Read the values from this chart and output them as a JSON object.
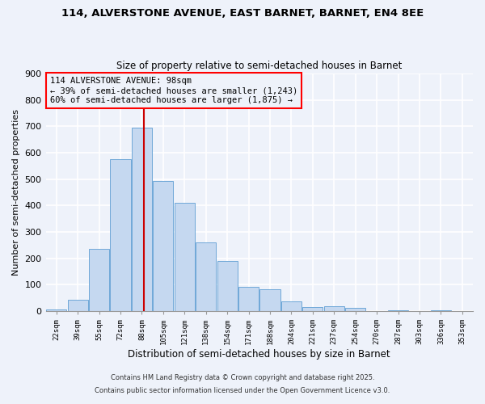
{
  "title": "114, ALVERSTONE AVENUE, EAST BARNET, BARNET, EN4 8EE",
  "subtitle": "Size of property relative to semi-detached houses in Barnet",
  "xlabel": "Distribution of semi-detached houses by size in Barnet",
  "ylabel": "Number of semi-detached properties",
  "bin_labels": [
    "22sqm",
    "39sqm",
    "55sqm",
    "72sqm",
    "88sqm",
    "105sqm",
    "121sqm",
    "138sqm",
    "154sqm",
    "171sqm",
    "188sqm",
    "204sqm",
    "221sqm",
    "237sqm",
    "254sqm",
    "270sqm",
    "287sqm",
    "303sqm",
    "336sqm",
    "353sqm"
  ],
  "bar_values": [
    8,
    42,
    237,
    575,
    695,
    492,
    410,
    262,
    190,
    92,
    82,
    37,
    15,
    18,
    13,
    0,
    5,
    0,
    5,
    0
  ],
  "bar_color": "#c5d8f0",
  "bar_edge_color": "#6fa8d8",
  "property_label": "114 ALVERSTONE AVENUE: 98sqm",
  "pct_smaller": "39%",
  "n_smaller": "1,243",
  "pct_larger": "60%",
  "n_larger": "1,875",
  "vline_color": "#cc0000",
  "ylim": [
    0,
    900
  ],
  "yticks": [
    0,
    100,
    200,
    300,
    400,
    500,
    600,
    700,
    800,
    900
  ],
  "footer1": "Contains HM Land Registry data © Crown copyright and database right 2025.",
  "footer2": "Contains public sector information licensed under the Open Government Licence v3.0.",
  "background_color": "#eef2fa",
  "grid_color": "#ffffff"
}
